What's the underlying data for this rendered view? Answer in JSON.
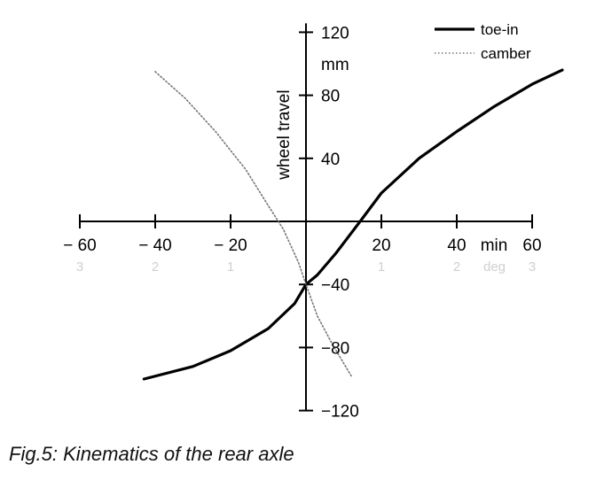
{
  "chart_data": {
    "type": "line",
    "caption": "Fig.5: Kinematics of the rear axle",
    "xlabel": "min",
    "ylabel": "wheel travel",
    "yunit": "mm",
    "xlim": [
      -60,
      70
    ],
    "ylim": [
      -120,
      120
    ],
    "x_ticks": [
      -60,
      -40,
      -20,
      0,
      20,
      40,
      60
    ],
    "x_tick_labels": [
      "− 60",
      "− 40",
      "− 20",
      "",
      "20",
      "40",
      "60"
    ],
    "y_ticks": [
      120,
      80,
      40,
      -40,
      -80,
      -120
    ],
    "y_tick_labels": [
      "120",
      "80",
      "40",
      "−40",
      "−80",
      "−120"
    ],
    "secondary_x_label": "deg",
    "secondary_x_ticks": [
      {
        "x": -60,
        "label": "3"
      },
      {
        "x": -40,
        "label": "2"
      },
      {
        "x": -20,
        "label": "1"
      },
      {
        "x": 20,
        "label": "1"
      },
      {
        "x": 40,
        "label": "2"
      },
      {
        "x": 60,
        "label": "3"
      }
    ],
    "grid": false,
    "legend_position": "top-right",
    "series": [
      {
        "name": "toe-in",
        "style": "solid",
        "color": "#000000",
        "points": [
          [
            -43,
            -100
          ],
          [
            -30,
            -92
          ],
          [
            -20,
            -82
          ],
          [
            -10,
            -68
          ],
          [
            -3,
            -52
          ],
          [
            0,
            -40
          ],
          [
            3,
            -34
          ],
          [
            8,
            -20
          ],
          [
            15,
            2
          ],
          [
            20,
            18
          ],
          [
            30,
            40
          ],
          [
            40,
            57
          ],
          [
            50,
            73
          ],
          [
            60,
            87
          ],
          [
            68,
            96
          ]
        ]
      },
      {
        "name": "camber",
        "style": "dotted",
        "color": "#777777",
        "points": [
          [
            -40,
            95
          ],
          [
            -32,
            78
          ],
          [
            -24,
            57
          ],
          [
            -16,
            33
          ],
          [
            -10,
            10
          ],
          [
            -6,
            -5
          ],
          [
            -2,
            -26
          ],
          [
            0,
            -40
          ],
          [
            3,
            -60
          ],
          [
            7,
            -78
          ],
          [
            12,
            -98
          ]
        ]
      }
    ]
  }
}
